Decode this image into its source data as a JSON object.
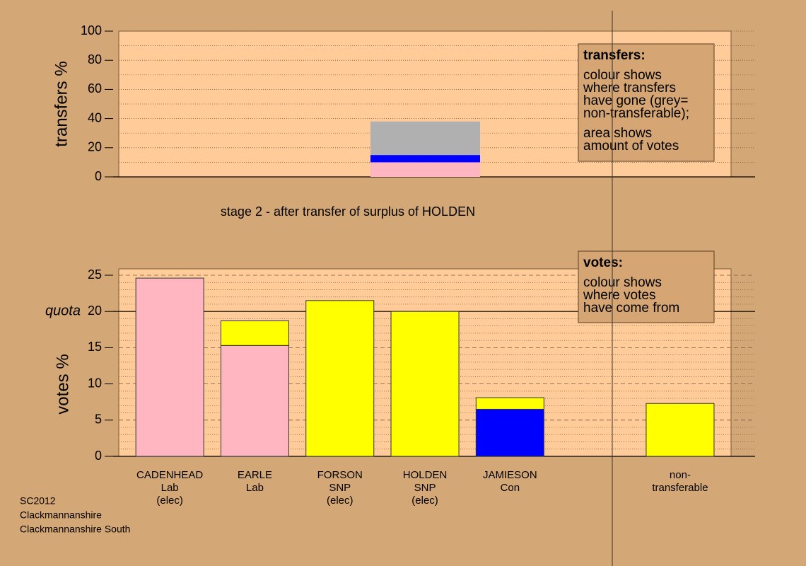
{
  "chart_data": [
    {
      "type": "bar",
      "stacked": true,
      "ylabel": "transfers %",
      "ylim": [
        0,
        100
      ],
      "yticks": [
        0,
        20,
        40,
        60,
        80,
        100
      ],
      "yminorticks": [
        10,
        30,
        50,
        70,
        90
      ],
      "grid": "dotted",
      "series": [
        {
          "color": "#ffb6c1",
          "values": [
            10
          ]
        },
        {
          "color": "#0000ff",
          "values": [
            5
          ]
        },
        {
          "color": "#b0b0b0",
          "values": [
            23
          ]
        }
      ],
      "subtitle": "stage 2 - after transfer of surplus of HOLDEN",
      "legend": {
        "title": "transfers:",
        "paragraphs": [
          [
            "colour shows",
            "where transfers",
            "have gone (grey=",
            "non-transferable);"
          ],
          [
            "area shows",
            "amount of votes"
          ]
        ]
      }
    },
    {
      "type": "bar",
      "stacked": true,
      "ylabel": "votes %",
      "ylim": [
        0,
        25
      ],
      "yticks": [
        0,
        5,
        10,
        15,
        20,
        25
      ],
      "yminorticks": [
        1,
        2,
        3,
        4,
        6,
        7,
        8,
        9,
        11,
        12,
        13,
        14,
        16,
        17,
        18,
        19,
        21,
        22,
        23,
        24
      ],
      "grid": "dashed",
      "quota": 20,
      "quota_label": "quota",
      "categories": [
        [
          "CADENHEAD",
          "Lab",
          "(elec)"
        ],
        [
          "EARLE",
          "Lab"
        ],
        [
          "FORSON",
          "SNP",
          "(elec)"
        ],
        [
          "HOLDEN",
          "SNP",
          "(elec)"
        ],
        [
          "JAMIESON",
          "Con"
        ],
        null,
        [
          "non-",
          "transferable"
        ]
      ],
      "series": [
        {
          "color": "#ffb6c1",
          "values": [
            24.6,
            15.3,
            null,
            null,
            null,
            null,
            null
          ]
        },
        {
          "color": "#0000ff",
          "values": [
            null,
            null,
            null,
            null,
            6.5,
            null,
            null
          ]
        },
        {
          "color": "#ffff00",
          "values": [
            null,
            3.4,
            21.5,
            20.0,
            1.6,
            null,
            7.3
          ]
        }
      ],
      "legend": {
        "title": "votes:",
        "paragraphs": [
          [
            "colour shows",
            "where votes",
            "have come from"
          ]
        ]
      }
    }
  ],
  "footer": [
    "SC2012",
    "Clackmannanshire",
    "Clackmannanshire South"
  ]
}
